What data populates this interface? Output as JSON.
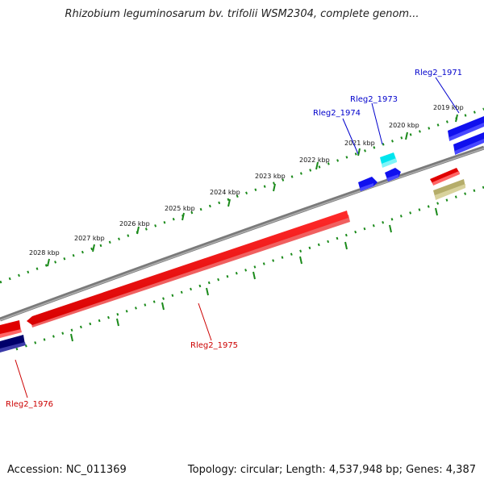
{
  "title": "Rhizobium leguminosarum bv. trifolii WSM2304, complete genom...",
  "footer": {
    "accession": "Accession: NC_011369",
    "summary": "Topology: circular; Length: 4,537,948 bp; Genes: 4,387"
  },
  "kbp_labels": [
    "2019 kbp",
    "2020 kbp",
    "2021 kbp",
    "2022 kbp",
    "2023 kbp",
    "2024 kbp",
    "2025 kbp",
    "2026 kbp",
    "2027 kbp",
    "2028 kbp"
  ],
  "genes": [
    {
      "label": "Rleg2_1971",
      "color": "#0000cc"
    },
    {
      "label": "Rleg2_1973",
      "color": "#0000cc"
    },
    {
      "label": "Rleg2_1974",
      "color": "#0000cc"
    },
    {
      "label": "Rleg2_1975",
      "color": "#cc0000"
    },
    {
      "label": "Rleg2_1976",
      "color": "#cc0000"
    }
  ],
  "colors": {
    "backbone": "#808080",
    "tick": "#1a8a1a",
    "forward_gene": "#ff0000",
    "reverse_gene": "#1010ee",
    "navy_gene": "#00006a",
    "cyan_gene": "#00e5ee",
    "khaki_gene": "#b5ad6a"
  }
}
